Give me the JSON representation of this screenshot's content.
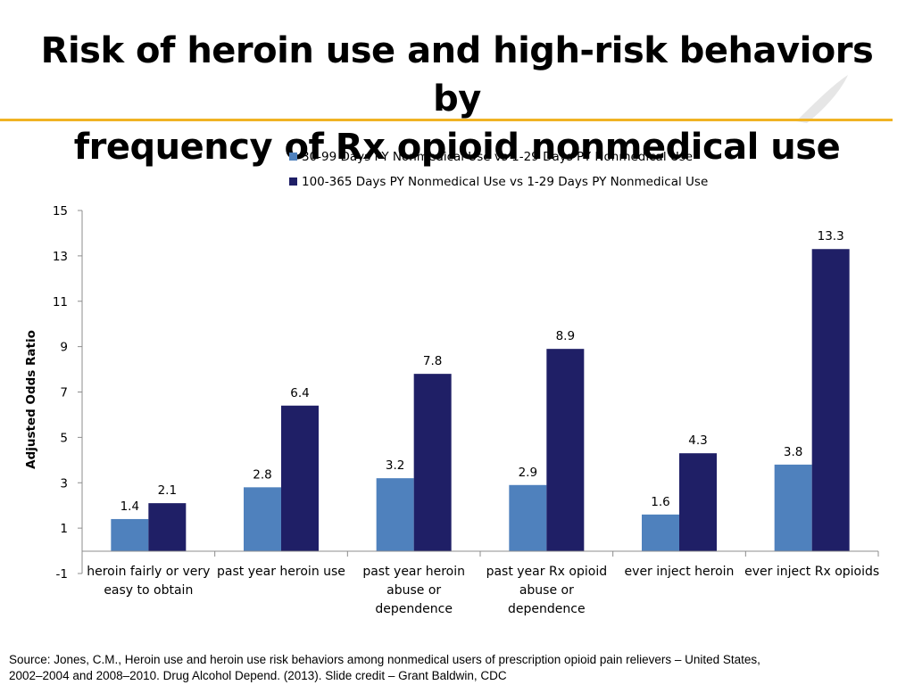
{
  "slide": {
    "title_line1": "Risk of heroin use and high-risk behaviors by",
    "title_line2": "frequency of Rx opioid nonmedical use",
    "accent_color": "#f0b323"
  },
  "chart_data": {
    "type": "bar",
    "title": "",
    "xlabel": "",
    "ylabel": "Adjusted Odds Ratio",
    "ylim": [
      -1,
      15
    ],
    "yticks": [
      -1,
      1,
      3,
      5,
      7,
      9,
      11,
      13,
      15
    ],
    "grid": false,
    "legend_position": "top",
    "categories": [
      [
        "heroin fairly or very",
        "easy to obtain"
      ],
      [
        "past year heroin use"
      ],
      [
        "past year heroin",
        "abuse or",
        "dependence"
      ],
      [
        "past year Rx opioid",
        "abuse or",
        "dependence"
      ],
      [
        "ever inject heroin"
      ],
      [
        "ever inject Rx opioids"
      ]
    ],
    "series": [
      {
        "name": "30-99 Days PY Nonmedical Use vs 1-29 Days PY Nonmedical Use",
        "color": "#4f81bd",
        "values": [
          1.4,
          2.8,
          3.2,
          2.9,
          1.6,
          3.8
        ],
        "labels": [
          "1.4",
          "2.8",
          "3.2",
          "2.9",
          "1.6",
          "3.8"
        ]
      },
      {
        "name": "100-365 Days PY Nonmedical Use vs 1-29 Days PY Nonmedical Use",
        "color": "#1f1f66",
        "values": [
          2.1,
          6.4,
          7.8,
          8.9,
          4.3,
          13.3
        ],
        "labels": [
          "2.1",
          "6.4",
          "7.8",
          "8.9",
          "4.3",
          "13.3"
        ]
      }
    ]
  },
  "source": {
    "line1": "Source: Jones, C.M., Heroin use and heroin use risk behaviors among nonmedical users of prescription opioid pain relievers – United States,",
    "line2": "2002–2004 and 2008–2010. Drug Alcohol Depend. (2013). Slide credit – Grant Baldwin, CDC"
  }
}
